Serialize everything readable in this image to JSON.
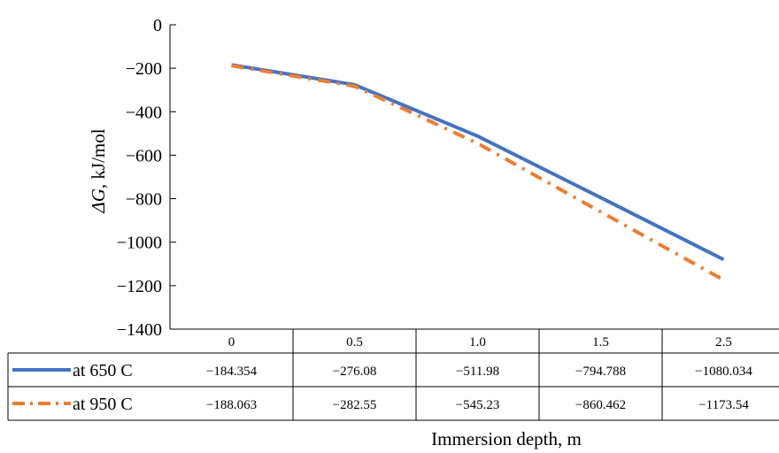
{
  "chart_data": {
    "type": "line",
    "title": "",
    "xlabel": "Immersion depth, m",
    "ylabel_symbol": "ΔG",
    "ylabel_unit": ", kJ/mol",
    "categories": [
      "0",
      "0.5",
      "1.0",
      "1.5",
      "2.5"
    ],
    "ylim": [
      -1400,
      0
    ],
    "yticks": [
      0,
      -200,
      -400,
      -600,
      -800,
      -1000,
      -1200,
      -1400
    ],
    "ytick_labels": [
      "0",
      "−200",
      "−400",
      "−600",
      "−800",
      "−1000",
      "−1200",
      "−1400"
    ],
    "grid": false,
    "legend_placement": "data-table",
    "series": [
      {
        "name": "at 650 C",
        "values": [
          -184.354,
          -276.08,
          -511.98,
          -794.788,
          -1080.034
        ],
        "value_labels": [
          "−184.354",
          "−276.08",
          "−511.98",
          "−794.788",
          "−1080.034"
        ],
        "color": "#4472C4",
        "line_style": "solid"
      },
      {
        "name": "at 950 C",
        "values": [
          -188.063,
          -282.55,
          -545.23,
          -860.462,
          -1173.54
        ],
        "value_labels": [
          "−188.063",
          "−282.55",
          "−545.23",
          "−860.462",
          "−1173.54"
        ],
        "color": "#ED7D31",
        "line_style": "dash-dot"
      }
    ]
  }
}
